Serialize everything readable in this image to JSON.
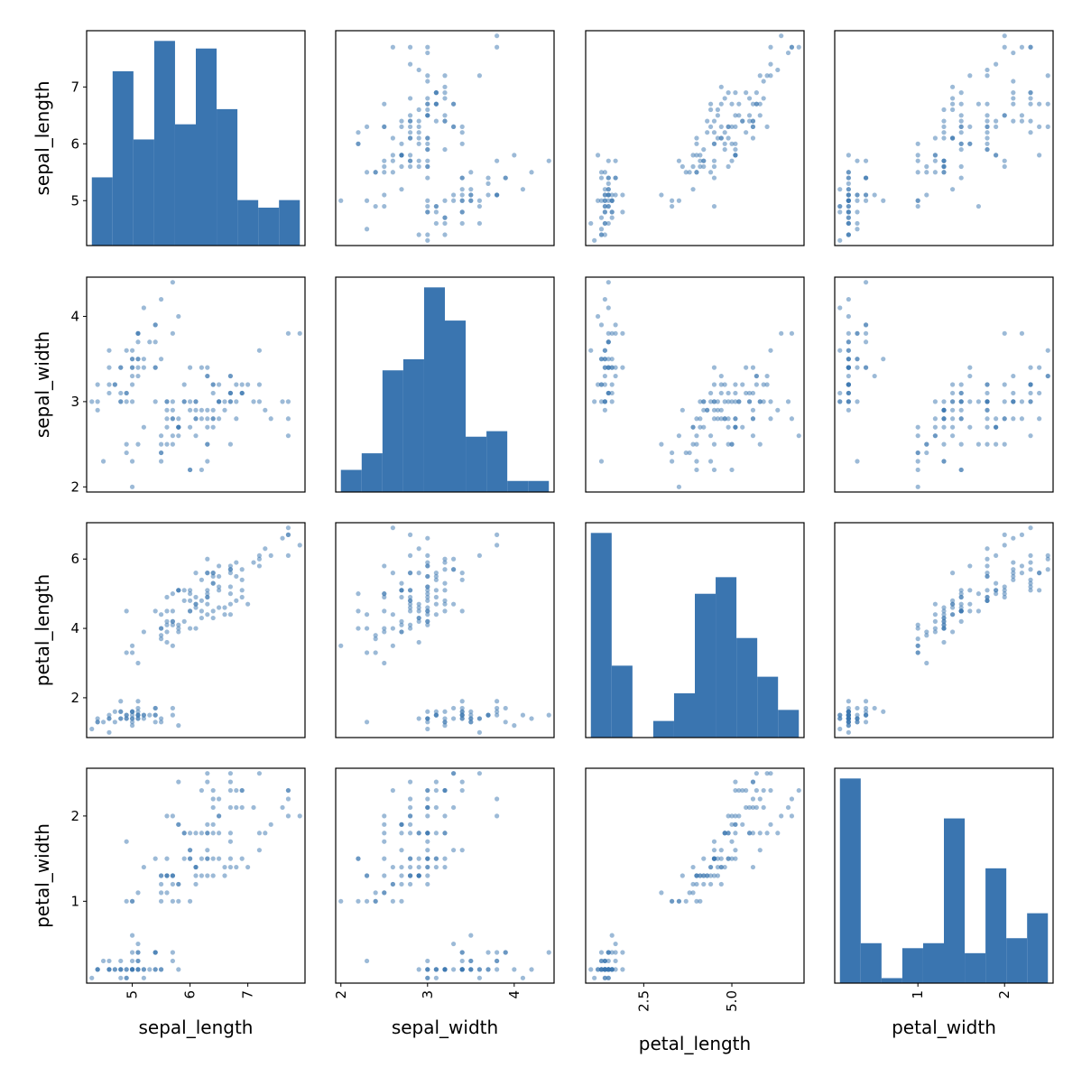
{
  "chart_data": {
    "type": "scatter",
    "kind": "scatter_matrix",
    "diagonal": "hist",
    "hist_bins": 10,
    "grid": false,
    "colors": {
      "hist": "#3a75b0",
      "points": "#3a75b0",
      "point_alpha": 0.5
    },
    "variables": [
      "sepal_length",
      "sepal_width",
      "petal_length",
      "petal_width"
    ],
    "axis_ranges": {
      "sepal_length": [
        4.21,
        7.99
      ],
      "sepal_width": [
        1.94,
        4.46
      ],
      "petal_length": [
        0.8525,
        7.0475
      ],
      "petal_width": [
        0.04,
        2.56
      ]
    },
    "yticks": {
      "sepal_length": [
        "5",
        "6",
        "7"
      ],
      "sepal_width": [
        "2",
        "3",
        "4"
      ],
      "petal_length": [
        "2",
        "4",
        "6"
      ],
      "petal_width": [
        "1",
        "2"
      ]
    },
    "xticks": {
      "sepal_length": [
        "5",
        "6",
        "7"
      ],
      "sepal_width": [
        "2",
        "3",
        "4"
      ],
      "petal_length": [
        "2.5",
        "5.0"
      ],
      "petal_width": [
        "1",
        "2"
      ]
    },
    "data": {
      "sepal_length": [
        5.1,
        4.9,
        4.7,
        4.6,
        5.0,
        5.4,
        4.6,
        5.0,
        4.4,
        4.9,
        5.4,
        4.8,
        4.8,
        4.3,
        5.8,
        5.7,
        5.4,
        5.1,
        5.7,
        5.1,
        5.4,
        5.1,
        4.6,
        5.1,
        4.8,
        5.0,
        5.0,
        5.2,
        5.2,
        4.7,
        4.8,
        5.4,
        5.2,
        5.5,
        4.9,
        5.0,
        5.5,
        4.9,
        4.4,
        5.1,
        5.0,
        4.5,
        4.4,
        5.0,
        5.1,
        4.8,
        5.1,
        4.6,
        5.3,
        5.0,
        7.0,
        6.4,
        6.9,
        5.5,
        6.5,
        5.7,
        6.3,
        4.9,
        6.6,
        5.2,
        5.0,
        5.9,
        6.0,
        6.1,
        5.6,
        6.7,
        5.6,
        5.8,
        6.2,
        5.6,
        5.9,
        6.1,
        6.3,
        6.1,
        6.4,
        6.6,
        6.8,
        6.7,
        6.0,
        5.7,
        5.5,
        5.5,
        5.8,
        6.0,
        5.4,
        6.0,
        6.7,
        6.3,
        5.6,
        5.5,
        5.5,
        6.1,
        5.8,
        5.0,
        5.6,
        5.7,
        5.7,
        6.2,
        5.1,
        5.7,
        6.3,
        5.8,
        7.1,
        6.3,
        6.5,
        7.6,
        4.9,
        7.3,
        6.7,
        7.2,
        6.5,
        6.4,
        6.8,
        5.7,
        5.8,
        6.4,
        6.5,
        7.7,
        7.7,
        6.0,
        6.9,
        5.6,
        7.7,
        6.3,
        6.7,
        7.2,
        6.2,
        6.1,
        6.4,
        7.2,
        7.4,
        7.9,
        6.4,
        6.3,
        6.1,
        7.7,
        6.3,
        6.4,
        6.0,
        6.9,
        6.7,
        6.9,
        5.8,
        6.8,
        6.7,
        6.7,
        6.3,
        6.5,
        6.2,
        5.9
      ],
      "sepal_width": [
        3.5,
        3.0,
        3.2,
        3.1,
        3.6,
        3.9,
        3.4,
        3.4,
        2.9,
        3.1,
        3.7,
        3.4,
        3.0,
        3.0,
        4.0,
        4.4,
        3.9,
        3.5,
        3.8,
        3.8,
        3.4,
        3.7,
        3.6,
        3.3,
        3.4,
        3.0,
        3.4,
        3.5,
        3.4,
        3.2,
        3.1,
        3.4,
        4.1,
        4.2,
        3.1,
        3.2,
        3.5,
        3.6,
        3.0,
        3.4,
        3.5,
        2.3,
        3.2,
        3.5,
        3.8,
        3.0,
        3.8,
        3.2,
        3.7,
        3.3,
        3.2,
        3.2,
        3.1,
        2.3,
        2.8,
        2.8,
        3.3,
        2.4,
        2.9,
        2.7,
        2.0,
        3.0,
        2.2,
        2.9,
        2.9,
        3.1,
        3.0,
        2.7,
        2.2,
        2.5,
        3.2,
        2.8,
        2.5,
        2.8,
        2.9,
        3.0,
        2.8,
        3.0,
        2.9,
        2.6,
        2.4,
        2.4,
        2.7,
        2.7,
        3.0,
        3.4,
        3.1,
        2.3,
        3.0,
        2.5,
        2.6,
        3.0,
        2.6,
        2.3,
        2.7,
        3.0,
        2.9,
        2.9,
        2.5,
        2.8,
        3.3,
        2.7,
        3.0,
        2.9,
        3.0,
        3.0,
        2.5,
        2.9,
        2.5,
        3.6,
        3.2,
        2.7,
        3.0,
        2.5,
        2.8,
        3.2,
        3.0,
        3.8,
        2.6,
        2.2,
        3.2,
        2.8,
        2.8,
        2.7,
        3.3,
        3.2,
        2.8,
        3.0,
        2.8,
        3.0,
        2.8,
        3.8,
        2.8,
        2.8,
        2.6,
        3.0,
        3.4,
        3.1,
        3.0,
        3.1,
        3.1,
        3.1,
        2.7,
        3.2,
        3.3,
        3.0,
        2.5,
        3.0,
        3.4,
        3.0
      ],
      "petal_length": [
        1.4,
        1.4,
        1.3,
        1.5,
        1.4,
        1.7,
        1.4,
        1.5,
        1.4,
        1.5,
        1.5,
        1.6,
        1.4,
        1.1,
        1.2,
        1.5,
        1.3,
        1.4,
        1.7,
        1.5,
        1.7,
        1.5,
        1.0,
        1.7,
        1.9,
        1.6,
        1.6,
        1.5,
        1.4,
        1.6,
        1.6,
        1.5,
        1.5,
        1.4,
        1.5,
        1.2,
        1.3,
        1.4,
        1.3,
        1.5,
        1.3,
        1.3,
        1.3,
        1.6,
        1.9,
        1.4,
        1.6,
        1.4,
        1.5,
        1.4,
        4.7,
        4.5,
        4.9,
        4.0,
        4.6,
        4.5,
        4.7,
        3.3,
        4.6,
        3.9,
        3.5,
        4.2,
        4.0,
        4.7,
        3.6,
        4.4,
        4.5,
        4.1,
        4.5,
        3.9,
        4.8,
        4.0,
        4.9,
        4.7,
        4.3,
        4.4,
        4.8,
        5.0,
        4.5,
        3.5,
        3.8,
        3.7,
        3.9,
        5.1,
        4.5,
        4.5,
        4.7,
        4.4,
        4.1,
        4.0,
        4.4,
        4.6,
        4.0,
        3.3,
        4.2,
        4.2,
        4.2,
        4.3,
        3.0,
        4.1,
        6.0,
        5.1,
        5.9,
        5.6,
        5.8,
        6.6,
        4.5,
        6.3,
        5.8,
        6.1,
        5.1,
        5.3,
        5.5,
        5.0,
        5.1,
        5.3,
        5.5,
        6.7,
        6.9,
        5.0,
        5.7,
        4.9,
        6.7,
        4.9,
        5.7,
        6.0,
        4.8,
        4.9,
        5.6,
        5.8,
        6.1,
        6.4,
        5.6,
        5.1,
        5.6,
        6.1,
        5.6,
        5.5,
        4.8,
        5.4,
        5.6,
        5.1,
        5.1,
        5.9,
        5.7,
        5.2,
        5.0,
        5.2,
        5.4,
        5.1
      ],
      "petal_width": [
        0.2,
        0.2,
        0.2,
        0.2,
        0.2,
        0.4,
        0.3,
        0.2,
        0.2,
        0.1,
        0.2,
        0.2,
        0.1,
        0.1,
        0.2,
        0.4,
        0.4,
        0.3,
        0.3,
        0.3,
        0.2,
        0.4,
        0.2,
        0.5,
        0.2,
        0.2,
        0.4,
        0.2,
        0.2,
        0.2,
        0.2,
        0.4,
        0.1,
        0.2,
        0.2,
        0.2,
        0.2,
        0.1,
        0.2,
        0.2,
        0.3,
        0.3,
        0.2,
        0.6,
        0.4,
        0.3,
        0.2,
        0.2,
        0.2,
        0.2,
        1.4,
        1.5,
        1.5,
        1.3,
        1.5,
        1.3,
        1.6,
        1.0,
        1.3,
        1.4,
        1.0,
        1.5,
        1.0,
        1.4,
        1.3,
        1.4,
        1.5,
        1.0,
        1.5,
        1.1,
        1.8,
        1.3,
        1.5,
        1.2,
        1.3,
        1.4,
        1.4,
        1.7,
        1.5,
        1.0,
        1.1,
        1.0,
        1.2,
        1.6,
        1.5,
        1.6,
        1.5,
        1.3,
        1.3,
        1.3,
        1.2,
        1.4,
        1.2,
        1.0,
        1.3,
        1.2,
        1.3,
        1.3,
        1.1,
        1.3,
        2.5,
        1.9,
        2.1,
        1.8,
        2.2,
        2.1,
        1.7,
        1.8,
        1.8,
        2.5,
        2.0,
        1.9,
        2.1,
        2.0,
        2.4,
        2.3,
        1.8,
        2.2,
        2.3,
        1.5,
        2.3,
        2.0,
        2.0,
        1.8,
        2.1,
        1.8,
        1.8,
        1.8,
        2.1,
        1.6,
        1.9,
        2.0,
        2.2,
        1.5,
        1.4,
        2.3,
        2.4,
        1.8,
        1.8,
        2.1,
        2.4,
        2.3,
        1.9,
        2.3,
        2.5,
        2.3,
        1.9,
        2.0,
        2.3,
        1.8
      ]
    }
  }
}
